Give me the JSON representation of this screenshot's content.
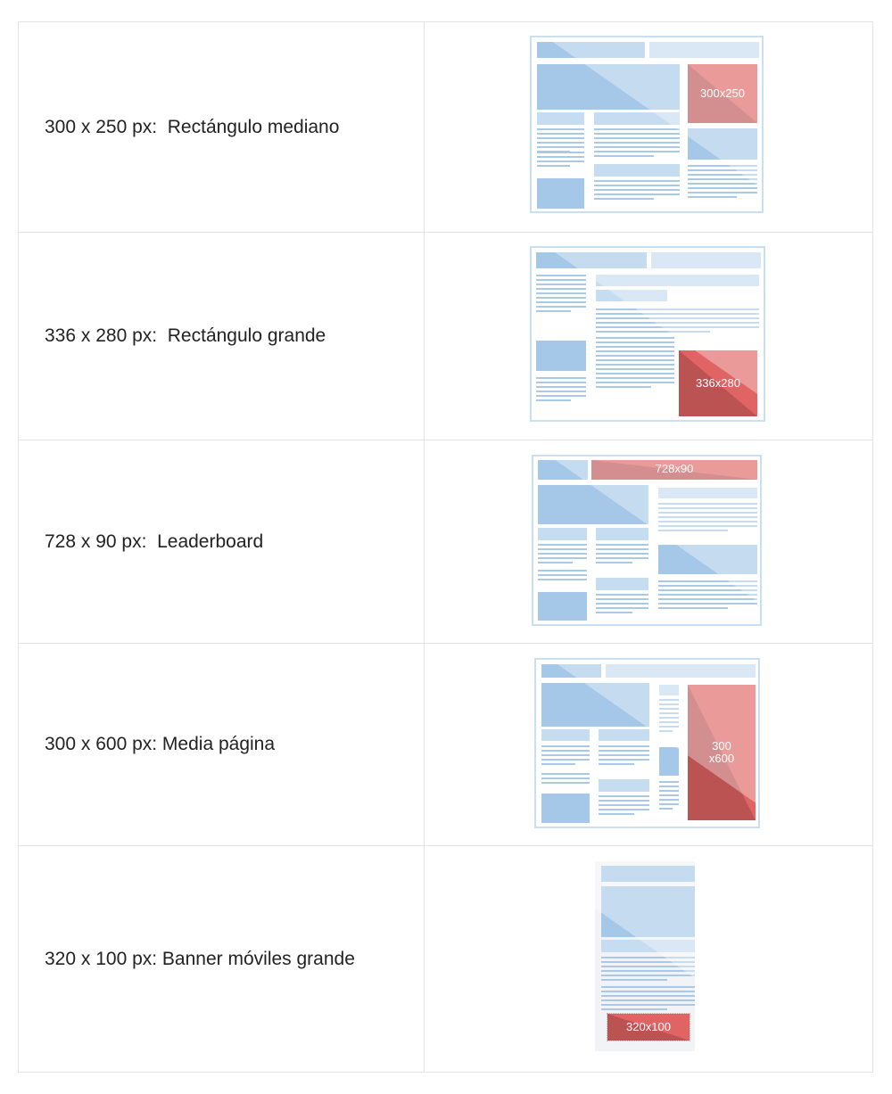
{
  "rows": [
    {
      "label": "300 x 250 px:  Rectángulo mediano",
      "ad_label": "300x250"
    },
    {
      "label": "336 x 280 px:  Rectángulo grande",
      "ad_label": "336x280"
    },
    {
      "label": "728 x 90 px:  Leaderboard",
      "ad_label": "728x90"
    },
    {
      "label": "300 x 600 px: Media página",
      "ad_label": "300\nx600"
    },
    {
      "label": "320 x 100 px: Banner móviles grande",
      "ad_label": "320x100"
    }
  ],
  "colors": {
    "ad": "#e06464",
    "ad_dark": "#bb5353",
    "block": "#a6c8e8",
    "block_light": "#c6dcf1"
  }
}
